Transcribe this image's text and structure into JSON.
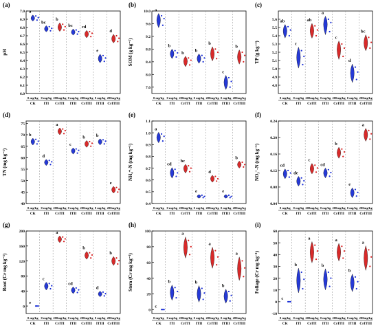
{
  "chart_data": [
    {
      "type": "violin",
      "panel_label": "(a)",
      "ylabel": "pH",
      "ylim": [
        6.0,
        7.0
      ],
      "yticks": [
        6.0,
        6.1,
        6.2,
        6.3,
        6.4,
        6.5,
        6.6,
        6.7,
        6.8,
        6.9,
        7.0
      ],
      "ytick_labels": [
        "6.0",
        "6.1",
        "6.2",
        "6.3",
        "6.4",
        "6.5",
        "6.6",
        "6.7",
        "6.8",
        "6.9",
        "7.0"
      ],
      "groups": [
        {
          "category": "CK",
          "dose": "0 mg/kg",
          "color": "#1a2fd6",
          "value": 6.91,
          "letter": "a",
          "points": [
            6.94,
            6.89,
            6.92
          ]
        },
        {
          "category": "ITI",
          "dose": "0 mg/kg",
          "color": "#1a2fd6",
          "value": 6.78,
          "letter": "bc",
          "points": [
            6.81,
            6.76,
            6.79
          ]
        },
        {
          "category": "CrITI",
          "dose": "200mg/kg",
          "color": "#d81e1e",
          "value": 6.8,
          "letter": "b",
          "points": [
            6.84,
            6.77,
            6.81
          ]
        },
        {
          "category": "ITII",
          "dose": "0 mg/kg",
          "color": "#1a2fd6",
          "value": 6.74,
          "letter": "bc",
          "points": [
            6.77,
            6.72,
            6.75
          ]
        },
        {
          "category": "CrITII",
          "dose": "200mg/kg",
          "color": "#d81e1e",
          "value": 6.72,
          "letter": "cd",
          "points": [
            6.75,
            6.69,
            6.73
          ]
        },
        {
          "category": "ITIII",
          "dose": "0 mg/kg",
          "color": "#1a2fd6",
          "value": 6.42,
          "letter": "e",
          "points": [
            6.46,
            6.39,
            6.43
          ]
        },
        {
          "category": "CrITIII",
          "dose": "200mg/kg",
          "color": "#d81e1e",
          "value": 6.66,
          "letter": "d",
          "points": [
            6.7,
            6.63,
            6.67
          ]
        }
      ]
    },
    {
      "type": "violin",
      "panel_label": "(b)",
      "ylabel": "SOM (g kg⁻¹)",
      "ylim": [
        7.4,
        10.0
      ],
      "yticks": [
        7.6,
        8.0,
        8.4,
        8.8,
        9.2,
        9.6,
        10.0
      ],
      "ytick_labels": [
        "7.6",
        "8.0",
        "8.4",
        "8.8",
        "9.2",
        "9.6",
        "10.0"
      ],
      "groups": [
        {
          "category": "CK",
          "dose": "0 mg/kg",
          "color": "#1a2fd6",
          "value": 9.72,
          "letter": "a",
          "points": [
            9.85,
            9.55,
            9.76
          ]
        },
        {
          "category": "ITI",
          "dose": "0 mg/kg",
          "color": "#1a2fd6",
          "value": 8.65,
          "letter": "b",
          "points": [
            8.75,
            8.55,
            8.68
          ]
        },
        {
          "category": "CrITI",
          "dose": "200mg/kg",
          "color": "#d81e1e",
          "value": 8.42,
          "letter": "b",
          "points": [
            8.52,
            8.3,
            8.45
          ]
        },
        {
          "category": "ITII",
          "dose": "0 mg/kg",
          "color": "#1a2fd6",
          "value": 8.5,
          "letter": "b",
          "points": [
            8.6,
            8.4,
            8.52
          ]
        },
        {
          "category": "CrITII",
          "dose": "200mg/kg",
          "color": "#d81e1e",
          "value": 8.65,
          "letter": "b",
          "points": [
            8.8,
            8.5,
            8.7
          ]
        },
        {
          "category": "ITIII",
          "dose": "0 mg/kg",
          "color": "#1a2fd6",
          "value": 7.75,
          "letter": "c",
          "points": [
            7.9,
            7.6,
            7.78
          ]
        },
        {
          "category": "CrITIII",
          "dose": "200mg/kg",
          "color": "#d81e1e",
          "value": 8.55,
          "letter": "b",
          "points": [
            8.7,
            8.4,
            8.6
          ]
        }
      ]
    },
    {
      "type": "violin",
      "panel_label": "(c)",
      "ylabel": "TP (g kg⁻¹)",
      "ylim": [
        4.7,
        5.7
      ],
      "yticks": [
        4.8,
        4.9,
        5.0,
        5.1,
        5.2,
        5.3,
        5.4,
        5.5,
        5.6
      ],
      "ytick_labels": [
        "4.8",
        "4.9",
        "5.0",
        "5.1",
        "5.2",
        "5.3",
        "5.4",
        "5.5",
        "5.6"
      ],
      "groups": [
        {
          "category": "CK",
          "dose": "0 mg/kg",
          "color": "#1a2fd6",
          "value": 5.46,
          "letter": "ab",
          "points": [
            5.51,
            5.4,
            5.47
          ]
        },
        {
          "category": "ITI",
          "dose": "0 mg/kg",
          "color": "#1a2fd6",
          "value": 5.14,
          "letter": "c",
          "points": [
            5.22,
            5.05,
            5.15
          ]
        },
        {
          "category": "CrITI",
          "dose": "200mg/kg",
          "color": "#d81e1e",
          "value": 5.46,
          "letter": "ab",
          "points": [
            5.52,
            5.4,
            5.47
          ]
        },
        {
          "category": "ITII",
          "dose": "0 mg/kg",
          "color": "#1a2fd6",
          "value": 5.55,
          "letter": "a",
          "points": [
            5.6,
            5.45,
            5.56
          ]
        },
        {
          "category": "CrITII",
          "dose": "200mg/kg",
          "color": "#d81e1e",
          "value": 5.24,
          "letter": "c",
          "points": [
            5.3,
            5.15,
            5.25
          ]
        },
        {
          "category": "ITIII",
          "dose": "0 mg/kg",
          "color": "#1a2fd6",
          "value": 4.95,
          "letter": "d",
          "points": [
            5.02,
            4.87,
            4.96
          ]
        },
        {
          "category": "CrITIII",
          "dose": "200mg/kg",
          "color": "#d81e1e",
          "value": 5.31,
          "letter": "bc",
          "points": [
            5.38,
            5.25,
            5.32
          ]
        }
      ]
    },
    {
      "type": "violin",
      "panel_label": "(d)",
      "ylabel": "TN (mg kg⁻¹)",
      "ylim": [
        40,
        76
      ],
      "yticks": [
        40,
        45,
        50,
        55,
        60,
        65,
        70,
        75
      ],
      "ytick_labels": [
        "40",
        "45",
        "50",
        "55",
        "60",
        "65",
        "70",
        "75"
      ],
      "groups": [
        {
          "category": "CK",
          "dose": "0 mg/kg",
          "color": "#1a2fd6",
          "value": 67.0,
          "letter": "b",
          "points": [
            68.0,
            66.0,
            67.2
          ]
        },
        {
          "category": "ITI",
          "dose": "0 mg/kg",
          "color": "#1a2fd6",
          "value": 58.0,
          "letter": "d",
          "points": [
            58.8,
            57.0,
            58.2
          ]
        },
        {
          "category": "CrITI",
          "dose": "200mg/kg",
          "color": "#d81e1e",
          "value": 71.5,
          "letter": "a",
          "points": [
            72.5,
            70.5,
            71.8
          ]
        },
        {
          "category": "ITII",
          "dose": "0 mg/kg",
          "color": "#1a2fd6",
          "value": 63.0,
          "letter": "c",
          "points": [
            63.8,
            62.0,
            63.2
          ]
        },
        {
          "category": "CrITII",
          "dose": "200mg/kg",
          "color": "#d81e1e",
          "value": 66.0,
          "letter": "b",
          "points": [
            67.0,
            65.0,
            66.3
          ]
        },
        {
          "category": "ITIII",
          "dose": "0 mg/kg",
          "color": "#1a2fd6",
          "value": 67.0,
          "letter": "b",
          "points": [
            67.8,
            66.0,
            67.2
          ]
        },
        {
          "category": "CrITIII",
          "dose": "200mg/kg",
          "color": "#d81e1e",
          "value": 46.0,
          "letter": "e",
          "points": [
            47.0,
            45.0,
            46.2
          ]
        }
      ]
    },
    {
      "type": "violin",
      "panel_label": "(e)",
      "ylabel": "NH₄⁺-N (mg kg⁻¹)",
      "ylim": [
        0.4,
        1.1
      ],
      "yticks": [
        0.4,
        0.5,
        0.6,
        0.7,
        0.8,
        0.9,
        1.0,
        1.1
      ],
      "ytick_labels": [
        "0.4",
        "0.5",
        "0.6",
        "0.7",
        "0.8",
        "0.9",
        "1.0",
        "1.1"
      ],
      "groups": [
        {
          "category": "CK",
          "dose": "0 mg/kg",
          "color": "#1a2fd6",
          "value": 0.96,
          "letter": "a",
          "points": [
            0.99,
            0.93,
            0.97
          ]
        },
        {
          "category": "ITI",
          "dose": "0 mg/kg",
          "color": "#1a2fd6",
          "value": 0.66,
          "letter": "cd",
          "points": [
            0.69,
            0.63,
            0.66
          ]
        },
        {
          "category": "CrITI",
          "dose": "200mg/kg",
          "color": "#d81e1e",
          "value": 0.7,
          "letter": "bc",
          "points": [
            0.72,
            0.67,
            0.7
          ]
        },
        {
          "category": "ITII",
          "dose": "0 mg/kg",
          "color": "#1a2fd6",
          "value": 0.46,
          "letter": "e",
          "points": [
            0.47,
            0.45,
            0.46
          ]
        },
        {
          "category": "CrITII",
          "dose": "200mg/kg",
          "color": "#d81e1e",
          "value": 0.61,
          "letter": "d",
          "points": [
            0.63,
            0.59,
            0.61
          ]
        },
        {
          "category": "ITIII",
          "dose": "0 mg/kg",
          "color": "#1a2fd6",
          "value": 0.46,
          "letter": "e",
          "points": [
            0.47,
            0.45,
            0.46
          ]
        },
        {
          "category": "CrITIII",
          "dose": "200mg/kg",
          "color": "#d81e1e",
          "value": 0.73,
          "letter": "b",
          "points": [
            0.75,
            0.71,
            0.73
          ]
        }
      ]
    },
    {
      "type": "violin",
      "panel_label": "(f)",
      "ylabel": "NO₃⁻-N (mg kg⁻¹)",
      "ylim": [
        0.04,
        0.24
      ],
      "yticks": [
        0.04,
        0.08,
        0.12,
        0.16,
        0.2,
        0.24
      ],
      "ytick_labels": [
        "0.04",
        "0.08",
        "0.12",
        "0.16",
        "0.20",
        "0.24"
      ],
      "groups": [
        {
          "category": "CK",
          "dose": "0 mg/kg",
          "color": "#1a2fd6",
          "value": 0.112,
          "letter": "cd",
          "points": [
            0.12,
            0.104,
            0.114
          ]
        },
        {
          "category": "ITI",
          "dose": "0 mg/kg",
          "color": "#1a2fd6",
          "value": 0.094,
          "letter": "de",
          "points": [
            0.102,
            0.086,
            0.095
          ]
        },
        {
          "category": "CrITI",
          "dose": "200mg/kg",
          "color": "#d81e1e",
          "value": 0.124,
          "letter": "c",
          "points": [
            0.133,
            0.116,
            0.126
          ]
        },
        {
          "category": "ITII",
          "dose": "0 mg/kg",
          "color": "#1a2fd6",
          "value": 0.114,
          "letter": "cd",
          "points": [
            0.122,
            0.106,
            0.115
          ]
        },
        {
          "category": "CrITII",
          "dose": "200mg/kg",
          "color": "#d81e1e",
          "value": 0.163,
          "letter": "b",
          "points": [
            0.172,
            0.154,
            0.165
          ]
        },
        {
          "category": "ITIII",
          "dose": "0 mg/kg",
          "color": "#1a2fd6",
          "value": 0.066,
          "letter": "e",
          "points": [
            0.074,
            0.058,
            0.067
          ]
        },
        {
          "category": "CrITIII",
          "dose": "200mg/kg",
          "color": "#d81e1e",
          "value": 0.207,
          "letter": "a",
          "points": [
            0.217,
            0.196,
            0.209
          ]
        }
      ]
    },
    {
      "type": "violin",
      "panel_label": "(g)",
      "ylabel": "Root (Cr mg kg⁻¹)",
      "ylim": [
        -20,
        200
      ],
      "yticks": [
        0,
        40,
        80,
        120,
        160,
        200
      ],
      "ytick_labels": [
        "0",
        "40",
        "80",
        "120",
        "160",
        "200"
      ],
      "groups": [
        {
          "category": "CK",
          "dose": "0 mg/kg",
          "color": "#1a2fd6",
          "value": 0,
          "letter": "e",
          "points": [
            0,
            0,
            0
          ]
        },
        {
          "category": "ITI",
          "dose": "0 mg/kg",
          "color": "#1a2fd6",
          "value": 53,
          "letter": "c",
          "points": [
            60,
            46,
            54
          ]
        },
        {
          "category": "CrITI",
          "dose": "200mg/kg",
          "color": "#d81e1e",
          "value": 178,
          "letter": "a",
          "points": [
            184,
            172,
            179
          ]
        },
        {
          "category": "ITII",
          "dose": "0 mg/kg",
          "color": "#1a2fd6",
          "value": 42,
          "letter": "cd",
          "points": [
            48,
            36,
            43
          ]
        },
        {
          "category": "CrITII",
          "dose": "200mg/kg",
          "color": "#d81e1e",
          "value": 135,
          "letter": "b",
          "points": [
            142,
            128,
            136
          ]
        },
        {
          "category": "ITIII",
          "dose": "0 mg/kg",
          "color": "#1a2fd6",
          "value": 32,
          "letter": "d",
          "points": [
            37,
            27,
            33
          ]
        },
        {
          "category": "CrITIII",
          "dose": "200mg/kg",
          "color": "#d81e1e",
          "value": 120,
          "letter": "b",
          "points": [
            128,
            112,
            121
          ]
        }
      ]
    },
    {
      "type": "violin",
      "panel_label": "(h)",
      "ylabel": "Stem (Cr mg kg⁻¹)",
      "ylim": [
        -5,
        100
      ],
      "yticks": [
        0,
        20,
        40,
        60,
        80,
        100
      ],
      "ytick_labels": [
        "0",
        "20",
        "40",
        "60",
        "80",
        "100"
      ],
      "groups": [
        {
          "category": "CK",
          "dose": "0 mg/kg",
          "color": "#1a2fd6",
          "value": 0,
          "letter": "c",
          "points": [
            0,
            0,
            0
          ]
        },
        {
          "category": "ITI",
          "dose": "0 mg/kg",
          "color": "#1a2fd6",
          "value": 22,
          "letter": "b",
          "points": [
            28,
            15,
            23
          ]
        },
        {
          "category": "CrITI",
          "dose": "200mg/kg",
          "color": "#d81e1e",
          "value": 79,
          "letter": "a",
          "points": [
            88,
            70,
            80
          ]
        },
        {
          "category": "ITII",
          "dose": "0 mg/kg",
          "color": "#1a2fd6",
          "value": 20,
          "letter": "b",
          "points": [
            27,
            13,
            21
          ]
        },
        {
          "category": "CrITII",
          "dose": "200mg/kg",
          "color": "#d81e1e",
          "value": 66,
          "letter": "a",
          "points": [
            75,
            57,
            67
          ]
        },
        {
          "category": "ITIII",
          "dose": "0 mg/kg",
          "color": "#1a2fd6",
          "value": 17,
          "letter": "b",
          "points": [
            23,
            11,
            18
          ]
        },
        {
          "category": "CrITIII",
          "dose": "200mg/kg",
          "color": "#d81e1e",
          "value": 52,
          "letter": "a",
          "points": [
            62,
            42,
            53
          ]
        }
      ]
    },
    {
      "type": "violin",
      "panel_label": "(i)",
      "ylabel": "Foliage (Cr mg kg⁻¹)",
      "ylim": [
        -10,
        60
      ],
      "yticks": [
        -10,
        0,
        10,
        20,
        30,
        40,
        50,
        60
      ],
      "ytick_labels": [
        "-10",
        "0",
        "10",
        "20",
        "30",
        "40",
        "50",
        "60"
      ],
      "groups": [
        {
          "category": "CK",
          "dose": "0 mg/kg",
          "color": "#1a2fd6",
          "value": 0,
          "letter": "c",
          "points": [
            0,
            0,
            0
          ]
        },
        {
          "category": "ITI",
          "dose": "0 mg/kg",
          "color": "#1a2fd6",
          "value": 18,
          "letter": "b",
          "points": [
            25,
            11,
            19
          ]
        },
        {
          "category": "CrITI",
          "dose": "200mg/kg",
          "color": "#d81e1e",
          "value": 42,
          "letter": "a",
          "points": [
            48,
            36,
            43
          ]
        },
        {
          "category": "ITII",
          "dose": "0 mg/kg",
          "color": "#1a2fd6",
          "value": 19,
          "letter": "b",
          "points": [
            25,
            13,
            20
          ]
        },
        {
          "category": "CrITII",
          "dose": "200mg/kg",
          "color": "#d81e1e",
          "value": 42,
          "letter": "a",
          "points": [
            47,
            37,
            43
          ]
        },
        {
          "category": "ITIII",
          "dose": "0 mg/kg",
          "color": "#1a2fd6",
          "value": 16,
          "letter": "b",
          "points": [
            21,
            11,
            17
          ]
        },
        {
          "category": "CrITIII",
          "dose": "200mg/kg",
          "color": "#d81e1e",
          "value": 37,
          "letter": "a",
          "points": [
            44,
            30,
            38
          ]
        }
      ]
    }
  ]
}
